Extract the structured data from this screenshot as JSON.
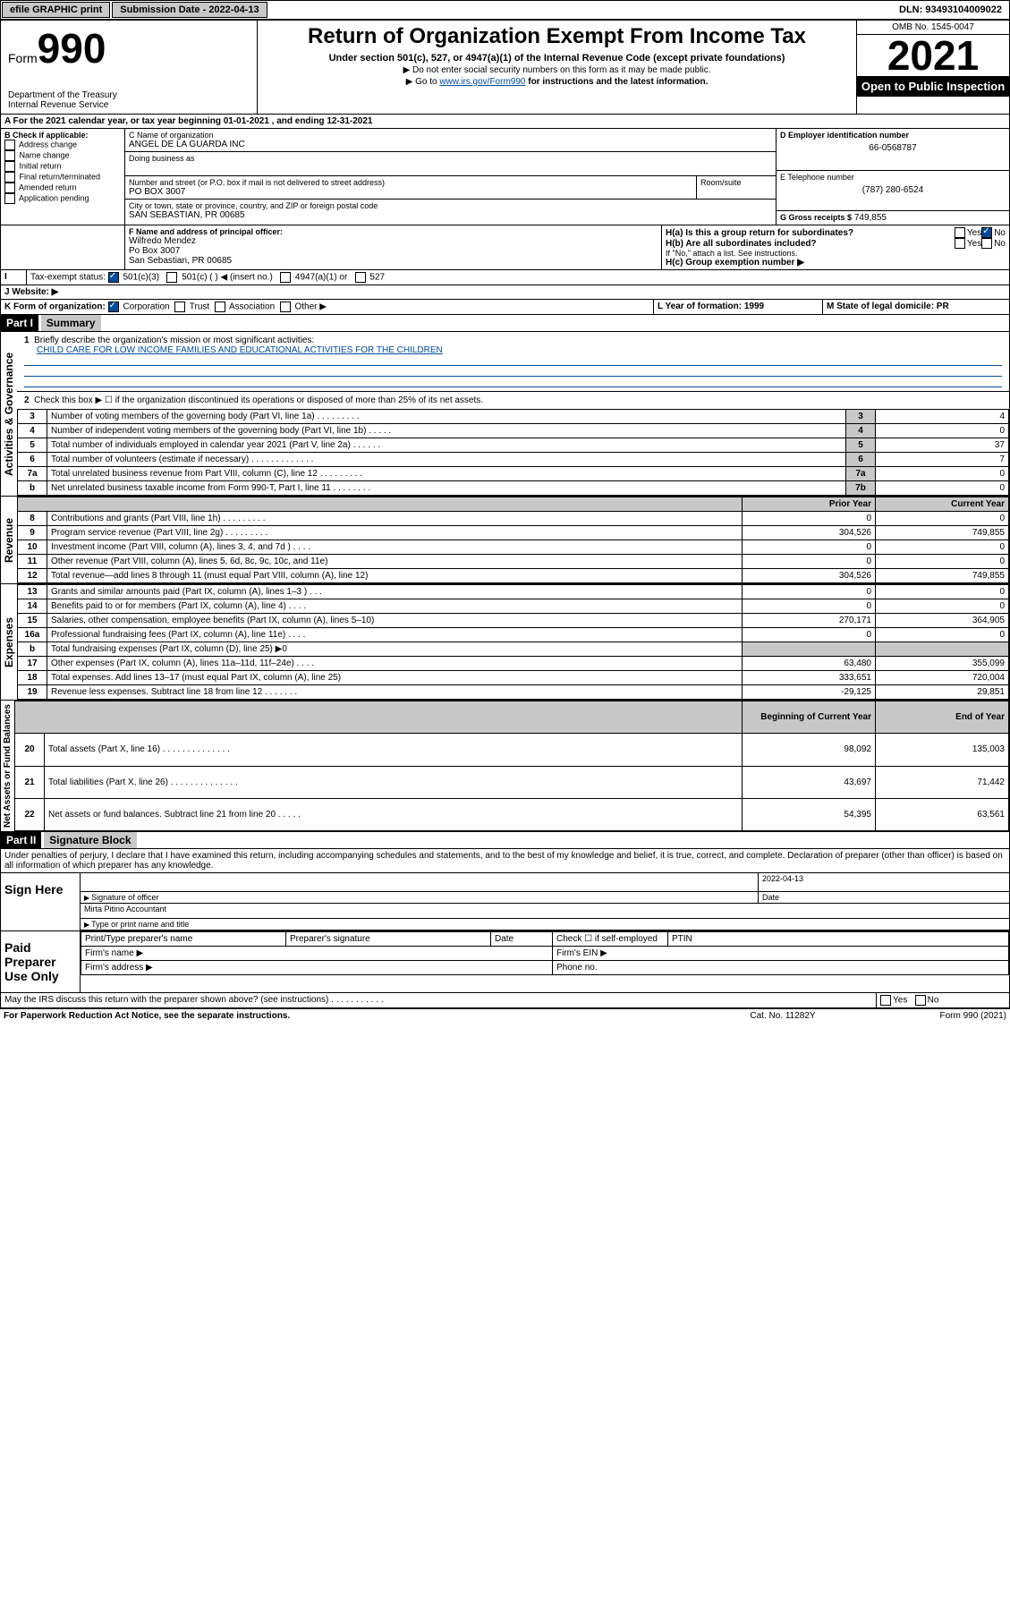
{
  "topbar": {
    "efile": "efile GRAPHIC print",
    "submission_label": "Submission Date - 2022-04-13",
    "dln": "DLN: 93493104009022"
  },
  "header": {
    "form_label": "Form",
    "form_number": "990",
    "dept": "Department of the Treasury\nInternal Revenue Service",
    "title": "Return of Organization Exempt From Income Tax",
    "subtitle": "Under section 501(c), 527, or 4947(a)(1) of the Internal Revenue Code (except private foundations)",
    "instruct1": "▶ Do not enter social security numbers on this form as it may be made public.",
    "instruct2_pre": "▶ Go to ",
    "instruct2_link": "www.irs.gov/Form990",
    "instruct2_post": " for instructions and the latest information.",
    "omb": "OMB No. 1545-0047",
    "year": "2021",
    "open": "Open to Public Inspection"
  },
  "sectionA": {
    "line": "A For the 2021 calendar year, or tax year beginning 01-01-2021   , and ending 12-31-2021"
  },
  "sectionB": {
    "label": "B Check if applicable:",
    "items": [
      "Address change",
      "Name change",
      "Initial return",
      "Final return/terminated",
      "Amended return",
      "Application pending"
    ]
  },
  "sectionC": {
    "name_label": "C Name of organization",
    "name": "ANGEL DE LA GUARDA INC",
    "dba_label": "Doing business as",
    "street_label": "Number and street (or P.O. box if mail is not delivered to street address)",
    "room_label": "Room/suite",
    "street": "PO BOX 3007",
    "city_label": "City or town, state or province, country, and ZIP or foreign postal code",
    "city": "SAN SEBASTIAN, PR  00685"
  },
  "sectionD": {
    "label": "D Employer identification number",
    "value": "66-0568787"
  },
  "sectionE": {
    "label": "E Telephone number",
    "value": "(787) 280-6524"
  },
  "sectionG": {
    "label": "G Gross receipts $",
    "value": "749,855"
  },
  "sectionF": {
    "label": "F Name and address of principal officer:",
    "name": "Wilfredo Mendez",
    "addr1": "Po Box 3007",
    "addr2": "San Sebastian, PR  00685"
  },
  "sectionH": {
    "a": "H(a)  Is this a group return for subordinates?",
    "b": "H(b)  Are all subordinates included?",
    "b_note": "If \"No,\" attach a list. See instructions.",
    "c": "H(c)  Group exemption number ▶",
    "yes": "Yes",
    "no": "No"
  },
  "sectionI": {
    "label": "Tax-exempt status:",
    "opts": [
      "501(c)(3)",
      "501(c) (  ) ◀ (insert no.)",
      "4947(a)(1) or",
      "527"
    ]
  },
  "sectionJ": {
    "label": "J   Website: ▶"
  },
  "sectionK": {
    "label": "K Form of organization:",
    "opts": [
      "Corporation",
      "Trust",
      "Association",
      "Other ▶"
    ]
  },
  "sectionL": {
    "label": "L Year of formation: 1999"
  },
  "sectionM": {
    "label": "M State of legal domicile: PR"
  },
  "part1": {
    "header": "Part I",
    "title": "Summary",
    "line1_label": "Briefly describe the organization's mission or most significant activities:",
    "line1_text": "CHILD CARE FOR LOW INCOME FAMILIES AND EDUCATIONAL ACTIVITIES FOR THE CHILDREN",
    "line2": "Check this box ▶ ☐  if the organization discontinued its operations or disposed of more than 25% of its net assets.",
    "side_gov": "Activities & Governance",
    "side_rev": "Revenue",
    "side_exp": "Expenses",
    "side_net": "Net Assets or Fund Balances",
    "rows_gov": [
      {
        "n": "3",
        "d": "Number of voting members of the governing body (Part VI, line 1a)  .    .    .    .    .    .    .    .    .",
        "b": "3",
        "v": "4"
      },
      {
        "n": "4",
        "d": "Number of independent voting members of the governing body (Part VI, line 1b)  .    .    .    .    .",
        "b": "4",
        "v": "0"
      },
      {
        "n": "5",
        "d": "Total number of individuals employed in calendar year 2021 (Part V, line 2a)   .    .    .    .    .    .",
        "b": "5",
        "v": "37"
      },
      {
        "n": "6",
        "d": "Total number of volunteers (estimate if necessary)   .    .    .    .    .    .    .    .    .    .    .    .    .",
        "b": "6",
        "v": "7"
      },
      {
        "n": "7a",
        "d": "Total unrelated business revenue from Part VIII, column (C), line 12   .    .    .    .    .    .    .    .    .",
        "b": "7a",
        "v": "0"
      },
      {
        "n": "b",
        "d": "Net unrelated business taxable income from Form 990-T, Part I, line 11   .    .    .    .    .    .    .    .",
        "b": "7b",
        "v": "0"
      }
    ],
    "col_prior": "Prior Year",
    "col_current": "Current Year",
    "rows_rev": [
      {
        "n": "8",
        "d": "Contributions and grants (Part VIII, line 1h)   .    .    .    .    .    .    .    .    .",
        "p": "0",
        "c": "0"
      },
      {
        "n": "9",
        "d": "Program service revenue (Part VIII, line 2g)   .    .    .    .    .    .    .    .    .",
        "p": "304,526",
        "c": "749,855"
      },
      {
        "n": "10",
        "d": "Investment income (Part VIII, column (A), lines 3, 4, and 7d )   .    .    .    .",
        "p": "0",
        "c": "0"
      },
      {
        "n": "11",
        "d": "Other revenue (Part VIII, column (A), lines 5, 6d, 8c, 9c, 10c, and 11e)",
        "p": "0",
        "c": "0"
      },
      {
        "n": "12",
        "d": "Total revenue—add lines 8 through 11 (must equal Part VIII, column (A), line 12)",
        "p": "304,526",
        "c": "749,855"
      }
    ],
    "rows_exp": [
      {
        "n": "13",
        "d": "Grants and similar amounts paid (Part IX, column (A), lines 1–3 )   .    .    .",
        "p": "0",
        "c": "0"
      },
      {
        "n": "14",
        "d": "Benefits paid to or for members (Part IX, column (A), line 4)   .    .    .    .",
        "p": "0",
        "c": "0"
      },
      {
        "n": "15",
        "d": "Salaries, other compensation, employee benefits (Part IX, column (A), lines 5–10)",
        "p": "270,171",
        "c": "364,905"
      },
      {
        "n": "16a",
        "d": "Professional fundraising fees (Part IX, column (A), line 11e)   .    .    .    .",
        "p": "0",
        "c": "0"
      },
      {
        "n": "b",
        "d": "Total fundraising expenses (Part IX, column (D), line 25) ▶0",
        "p": "",
        "c": "",
        "shaded": true
      },
      {
        "n": "17",
        "d": "Other expenses (Part IX, column (A), lines 11a–11d, 11f–24e)   .    .    .    .",
        "p": "63,480",
        "c": "355,099"
      },
      {
        "n": "18",
        "d": "Total expenses. Add lines 13–17 (must equal Part IX, column (A), line 25)",
        "p": "333,651",
        "c": "720,004"
      },
      {
        "n": "19",
        "d": "Revenue less expenses. Subtract line 18 from line 12   .    .    .    .    .    .    .",
        "p": "-29,125",
        "c": "29,851"
      }
    ],
    "col_begin": "Beginning of Current Year",
    "col_end": "End of Year",
    "rows_net": [
      {
        "n": "20",
        "d": "Total assets (Part X, line 16)   .    .    .    .    .    .    .    .    .    .    .    .    .    .",
        "p": "98,092",
        "c": "135,003"
      },
      {
        "n": "21",
        "d": "Total liabilities (Part X, line 26)   .    .    .    .    .    .    .    .    .    .    .    .    .    .",
        "p": "43,697",
        "c": "71,442"
      },
      {
        "n": "22",
        "d": "Net assets or fund balances. Subtract line 21 from line 20   .    .    .    .    .",
        "p": "54,395",
        "c": "63,561"
      }
    ]
  },
  "part2": {
    "header": "Part II",
    "title": "Signature Block",
    "penalty": "Under penalties of perjury, I declare that I have examined this return, including accompanying schedules and statements, and to the best of my knowledge and belief, it is true, correct, and complete. Declaration of preparer (other than officer) is based on all information of which preparer has any knowledge.",
    "sign_here": "Sign Here",
    "sig_officer": "Signature of officer",
    "sig_date": "2022-04-13",
    "date_label": "Date",
    "officer_name": "Mirta Pitino  Accountant",
    "type_name": "Type or print name and title",
    "paid_label": "Paid Preparer Use Only",
    "prep_name": "Print/Type preparer's name",
    "prep_sig": "Preparer's signature",
    "prep_date": "Date",
    "check_self": "Check ☐ if self-employed",
    "ptin": "PTIN",
    "firm_name": "Firm's name   ▶",
    "firm_ein": "Firm's EIN ▶",
    "firm_addr": "Firm's address ▶",
    "phone": "Phone no.",
    "discuss": "May the IRS discuss this return with the preparer shown above? (see instructions)   .    .    .    .    .    .    .    .    .    .    .",
    "yes": "Yes",
    "no": "No"
  },
  "footer": {
    "left": "For Paperwork Reduction Act Notice, see the separate instructions.",
    "mid": "Cat. No. 11282Y",
    "right": "Form 990 (2021)"
  }
}
